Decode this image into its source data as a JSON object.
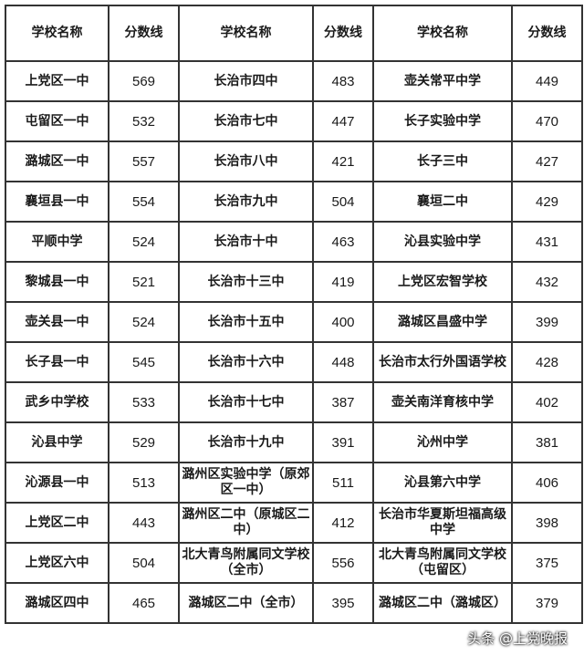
{
  "headers": [
    "学校名称",
    "分数线",
    "学校名称",
    "分数线",
    "学校名称",
    "分数线"
  ],
  "rows": [
    [
      "上党区一中",
      "569",
      "长治市四中",
      "483",
      "壶关常平中学",
      "449"
    ],
    [
      "屯留区一中",
      "532",
      "长治市七中",
      "447",
      "长子实验中学",
      "470"
    ],
    [
      "潞城区一中",
      "557",
      "长治市八中",
      "421",
      "长子三中",
      "427"
    ],
    [
      "襄垣县一中",
      "554",
      "长治市九中",
      "504",
      "襄垣二中",
      "429"
    ],
    [
      "平顺中学",
      "524",
      "长治市十中",
      "463",
      "沁县实验中学",
      "431"
    ],
    [
      "黎城县一中",
      "521",
      "长治市十三中",
      "419",
      "上党区宏智学校",
      "432"
    ],
    [
      "壶关县一中",
      "524",
      "长治市十五中",
      "400",
      "潞城区昌盛中学",
      "399"
    ],
    [
      "长子县一中",
      "545",
      "长治市十六中",
      "448",
      "长治市太行外国语学校",
      "428"
    ],
    [
      "武乡中学校",
      "533",
      "长治市十七中",
      "387",
      "壶关南洋育核中学",
      "402"
    ],
    [
      "沁县中学",
      "529",
      "长治市十九中",
      "391",
      "沁州中学",
      "381"
    ],
    [
      "沁源县一中",
      "513",
      "潞州区实验中学（原郊区一中）",
      "511",
      "沁县第六中学",
      "406"
    ],
    [
      "上党区二中",
      "443",
      "潞州区二中（原城区二中）",
      "412",
      "长治市华夏斯坦福高级中学",
      "398"
    ],
    [
      "上党区六中",
      "504",
      "北大青鸟附属同文学校（全市）",
      "556",
      "北大青鸟附属同文学校（屯留区）",
      "375"
    ],
    [
      "潞城区四中",
      "465",
      "潞城区二中（全市）",
      "395",
      "潞城区二中（潞城区）",
      "379"
    ]
  ],
  "watermark": "头条 @上党晚报"
}
